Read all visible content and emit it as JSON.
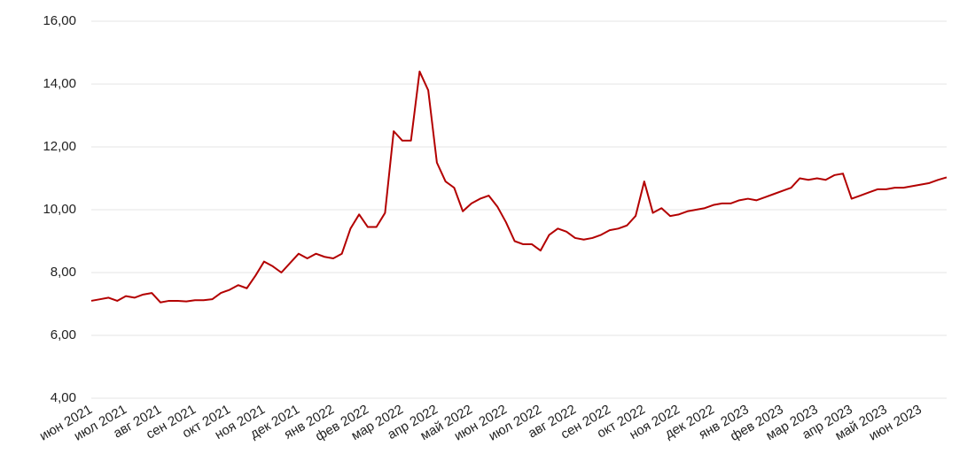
{
  "chart_data": {
    "type": "line",
    "categories": [
      "июн 2021",
      null,
      null,
      null,
      "июл 2021",
      null,
      null,
      null,
      "авг 2021",
      null,
      null,
      null,
      "сен 2021",
      null,
      null,
      null,
      "окт 2021",
      null,
      null,
      null,
      "ноя 2021",
      null,
      null,
      null,
      "дек 2021",
      null,
      null,
      null,
      "янв 2022",
      null,
      null,
      null,
      "фев 2022",
      null,
      null,
      null,
      "мар 2022",
      null,
      null,
      null,
      "апр 2022",
      null,
      null,
      null,
      "май 2022",
      null,
      null,
      null,
      "июн 2022",
      null,
      null,
      null,
      "июл 2022",
      null,
      null,
      null,
      "авг 2022",
      null,
      null,
      null,
      "сен 2022",
      null,
      null,
      null,
      "окт 2022",
      null,
      null,
      null,
      "ноя 2022",
      null,
      null,
      null,
      "дек 2022",
      null,
      null,
      null,
      "янв 2023",
      null,
      null,
      null,
      "фев 2023",
      null,
      null,
      null,
      "мар 2023",
      null,
      null,
      null,
      "апр 2023",
      null,
      null,
      null,
      "май 2023",
      null,
      null,
      null,
      "июн 2023",
      null,
      null,
      null
    ],
    "series": [
      {
        "color": "#b30000",
        "values": [
          7.1,
          7.15,
          7.2,
          7.1,
          7.25,
          7.2,
          7.3,
          7.35,
          7.05,
          7.1,
          7.1,
          7.08,
          7.12,
          7.12,
          7.15,
          7.35,
          7.45,
          7.6,
          7.5,
          7.9,
          8.35,
          8.2,
          8.0,
          8.3,
          8.6,
          8.45,
          8.6,
          8.5,
          8.45,
          8.6,
          9.4,
          9.85,
          9.45,
          9.45,
          9.9,
          12.5,
          12.2,
          12.2,
          14.4,
          13.8,
          11.5,
          10.9,
          10.7,
          9.95,
          10.2,
          10.35,
          10.45,
          10.1,
          9.6,
          9.0,
          8.9,
          8.9,
          8.7,
          9.2,
          9.4,
          9.3,
          9.1,
          9.05,
          9.1,
          9.2,
          9.35,
          9.4,
          9.5,
          9.8,
          10.9,
          9.9,
          10.05,
          9.8,
          9.85,
          9.95,
          10.0,
          10.05,
          10.15,
          10.2,
          10.2,
          10.3,
          10.35,
          10.3,
          10.4,
          10.5,
          10.6,
          10.7,
          11.0,
          10.95,
          11.0,
          10.95,
          11.1,
          11.15,
          10.35,
          10.45,
          10.55,
          10.65,
          10.65,
          10.7,
          10.7,
          10.75,
          10.8,
          10.85,
          10.95,
          11.03
        ]
      }
    ],
    "ylim": [
      4,
      16
    ],
    "yticks": [
      {
        "value": 4,
        "label": "4,00"
      },
      {
        "value": 6,
        "label": "6,00"
      },
      {
        "value": 8,
        "label": "8,00"
      },
      {
        "value": 10,
        "label": "10,00"
      },
      {
        "value": 12,
        "label": "12,00"
      },
      {
        "value": 14,
        "label": "14,00"
      },
      {
        "value": 16,
        "label": "16,00"
      }
    ],
    "grid": true
  }
}
